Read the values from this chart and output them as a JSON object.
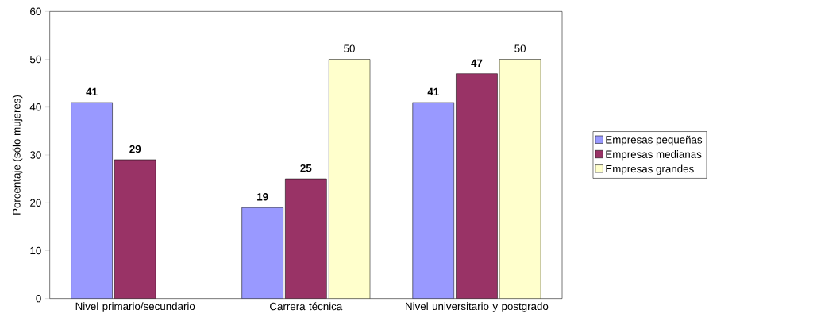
{
  "chart_data": {
    "type": "bar",
    "ylabel": "Porcentaje (sólo mujeres)",
    "categories": [
      "Nivel primario/secundario",
      "Carrera técnica",
      "Nivel universitario y postgrado"
    ],
    "series": [
      {
        "name": "Empresas pequeñas",
        "color": "#9999ff",
        "values": [
          41,
          19,
          41
        ]
      },
      {
        "name": "Empresas medianas",
        "color": "#993366",
        "values": [
          29,
          25,
          47
        ]
      },
      {
        "name": "Empresas grandes",
        "color": "#ffffcc",
        "values": [
          null,
          50,
          50
        ]
      }
    ],
    "ylim": [
      0,
      60
    ],
    "yticks": [
      0,
      10,
      20,
      30,
      40,
      50,
      60
    ],
    "data_labels": true,
    "legend": "right",
    "grid": false
  }
}
